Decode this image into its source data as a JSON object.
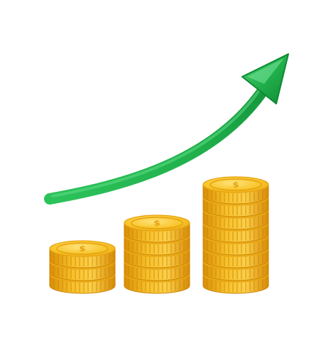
{
  "image": {
    "kind": "illustration",
    "background_color": "#ffffff"
  },
  "arrow": {
    "icon": "upward-trend-arrow-icon",
    "color_main": "#22b14c",
    "color_dark": "#0f8a34",
    "color_light": "#4fd17a"
  },
  "coins": {
    "icon": "coin-stack-icon",
    "color_face": "#f7c12a",
    "color_rim": "#e6a10c",
    "color_shadow": "#c98206",
    "color_highlight": "#ffe27a",
    "emblem": "$",
    "stacks": [
      {
        "name": "small",
        "coin_count": 3
      },
      {
        "name": "medium",
        "coin_count": 5
      },
      {
        "name": "large",
        "coin_count": 8
      }
    ]
  }
}
